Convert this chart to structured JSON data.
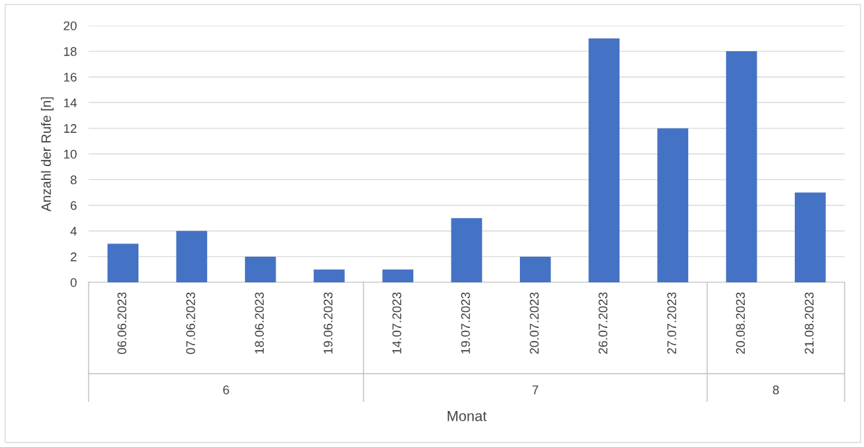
{
  "chart_data": {
    "type": "bar",
    "ylabel": "Anzahl der Rufe [n]",
    "xlabel": "Monat",
    "categories": [
      "06.06.2023",
      "07.06.2023",
      "18.06.2023",
      "19.06.2023",
      "14.07.2023",
      "19.07.2023",
      "20.07.2023",
      "26.07.2023",
      "27.07.2023",
      "20.08.2023",
      "21.08.2023"
    ],
    "values": [
      3,
      4,
      2,
      1,
      1,
      5,
      2,
      19,
      12,
      18,
      7
    ],
    "color": "#4472c4",
    "ylim": [
      0,
      20
    ],
    "yticks": [
      0,
      2,
      4,
      6,
      8,
      10,
      12,
      14,
      16,
      18,
      20
    ],
    "grid": "y",
    "annotations": [
      "6",
      "7",
      "8"
    ]
  }
}
